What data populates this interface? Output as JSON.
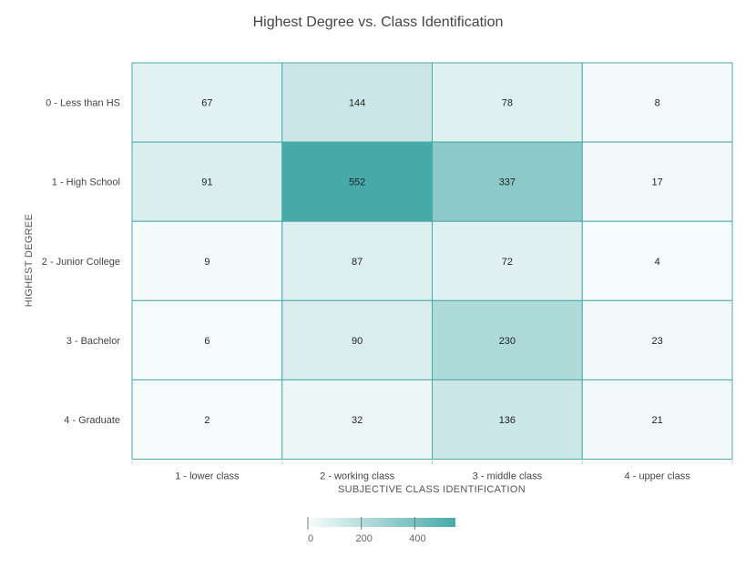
{
  "chart_data": {
    "type": "heatmap",
    "title": "Highest Degree vs. Class Identification",
    "xlabel": "SUBJECTIVE CLASS IDENTIFICATION",
    "ylabel": "HIGHEST DEGREE",
    "x_categories": [
      "1 - lower class",
      "2 - working class",
      "3 - middle class",
      "4 - upper class"
    ],
    "y_categories": [
      "0 - Less than HS",
      "1 - High School",
      "2 - Junior College",
      "3 - Bachelor",
      "4 - Graduate"
    ],
    "values": [
      [
        67,
        144,
        78,
        8
      ],
      [
        91,
        552,
        337,
        17
      ],
      [
        9,
        87,
        72,
        4
      ],
      [
        6,
        90,
        230,
        23
      ],
      [
        2,
        32,
        136,
        21
      ]
    ],
    "color_scale": {
      "min": 0,
      "max": 552,
      "low_color": "#ffffff",
      "high_color": "#47aaa9",
      "border_color": "#49a9ab"
    },
    "legend": {
      "position": "bottom-center",
      "ticks": [
        0,
        200,
        400
      ]
    }
  }
}
